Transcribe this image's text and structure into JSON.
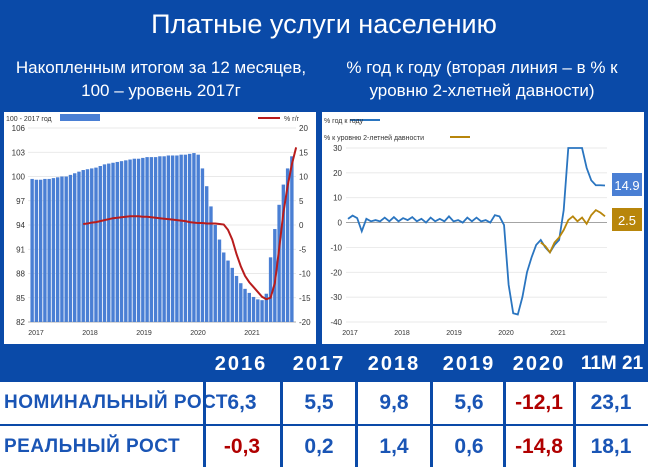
{
  "title": "Платные услуги населению",
  "left": {
    "subtitle": "Накопленным итогом за 12 месяцев, 100 – уровень 2017г",
    "legend_bar": "100 - 2017 год",
    "legend_line": "% г/г"
  },
  "right": {
    "subtitle": "% год к году (вторая линия – в % к уровню 2-хлетней давности)",
    "legend1": "% год к году",
    "legend2": "% к уровню 2-летней давности",
    "label1": "14.9",
    "label2": "2.5"
  },
  "colors": {
    "bar": "#4a7fd4",
    "line_left": "#b81c1c",
    "line1": "#2a75c0",
    "line2": "#b8860b",
    "header": "#0a4aa8",
    "red": "#b00000",
    "blue": "#1a55b5"
  },
  "table": {
    "headers": [
      "2016",
      "2017",
      "2018",
      "2019",
      "2020",
      "11М 21"
    ],
    "rows": [
      {
        "label": "НОМИНАЛЬНЫЙ РОСТ",
        "values": [
          "6,3",
          "5,5",
          "9,8",
          "5,6",
          "-12,1",
          "23,1"
        ]
      },
      {
        "label": "РЕАЛЬНЫЙ РОСТ",
        "values": [
          "-0,3",
          "0,2",
          "1,4",
          "0,6",
          "-14,8",
          "18,1"
        ]
      }
    ]
  },
  "chart_data": [
    {
      "type": "bar",
      "x_ticks": [
        "2017",
        "2018",
        "2019",
        "2020",
        "2021"
      ],
      "ylim_left": [
        82,
        106
      ],
      "yticks_left": [
        "82",
        "85",
        "88",
        "91",
        "94",
        "97",
        "100",
        "103",
        "106"
      ],
      "ylim_right": [
        -20,
        20
      ],
      "yticks_right": [
        "-20",
        "-15",
        "-10",
        "-5",
        "0",
        "5",
        "10",
        "15",
        "20"
      ],
      "series": [
        {
          "name": "100 - 2017 год",
          "type": "bar",
          "values": [
            99.7,
            99.6,
            99.6,
            99.7,
            99.7,
            99.8,
            99.9,
            100.0,
            100.0,
            100.2,
            100.4,
            100.6,
            100.8,
            100.9,
            101.0,
            101.1,
            101.3,
            101.5,
            101.6,
            101.7,
            101.8,
            101.9,
            102.0,
            102.1,
            102.2,
            102.2,
            102.3,
            102.4,
            102.4,
            102.4,
            102.5,
            102.5,
            102.6,
            102.6,
            102.6,
            102.7,
            102.7,
            102.8,
            102.9,
            102.7,
            101.0,
            98.8,
            96.3,
            94.0,
            92.2,
            90.6,
            89.6,
            88.7,
            87.7,
            86.8,
            86.1,
            85.6,
            85.1,
            84.8,
            84.7,
            85.5,
            90.0,
            93.5,
            96.5,
            99.0,
            101.0,
            102.5
          ]
        },
        {
          "name": "% г/г",
          "type": "line",
          "values": [
            0.2,
            0.3,
            0.5,
            0.6,
            0.8,
            1.0,
            1.2,
            1.4,
            1.5,
            1.6,
            1.7,
            1.8,
            1.8,
            1.8,
            1.7,
            1.7,
            1.6,
            1.5,
            1.4,
            1.3,
            1.2,
            1.1,
            1.0,
            0.9,
            0.8,
            0.6,
            0.5,
            0.4,
            0.4,
            0.3,
            0.3,
            0.3,
            0.2,
            0.1,
            -1.0,
            -3.0,
            -6.0,
            -8.5,
            -10.5,
            -11.8,
            -12.8,
            -13.8,
            -14.8,
            -15.3,
            -15.0,
            -12.0,
            -5.0,
            2.5,
            8.0,
            12.5,
            16.0
          ]
        }
      ]
    },
    {
      "type": "line",
      "x_ticks": [
        "2017",
        "2018",
        "2019",
        "2020",
        "2021"
      ],
      "ylim": [
        -40,
        30
      ],
      "yticks": [
        "-40",
        "-30",
        "-20",
        "-10",
        "0",
        "10",
        "20",
        "30"
      ],
      "series": [
        {
          "name": "% год к году",
          "values": [
            1.5,
            2.8,
            1.8,
            -3.5,
            1.5,
            0.5,
            1.0,
            0.5,
            2.0,
            0.5,
            2.2,
            0.5,
            1.8,
            1.0,
            2.2,
            0.5,
            1.5,
            0.0,
            2.0,
            0.5,
            1.5,
            0.5,
            2.5,
            0.5,
            1.0,
            0.0,
            2.0,
            0.5,
            2.0,
            0.5,
            1.0,
            0.0,
            3.0,
            2.5,
            -1.0,
            -25.0,
            -36.5,
            -37.0,
            -30.0,
            -20.0,
            -14.0,
            -9.0,
            -7.0,
            -10.0,
            -12.0,
            -9.0,
            -7.0,
            5.0,
            30.0,
            45.0,
            38.0,
            30.0,
            22.0,
            17.0,
            15.0,
            15.0,
            14.9
          ]
        },
        {
          "name": "% к уровню 2-летней давности",
          "values": [
            -8.0,
            -9.5,
            -12.0,
            -8.0,
            -6.0,
            -3.0,
            1.0,
            2.5,
            0.5,
            2.0,
            -0.5,
            3.0,
            5.0,
            4.0,
            2.5
          ]
        }
      ]
    }
  ]
}
